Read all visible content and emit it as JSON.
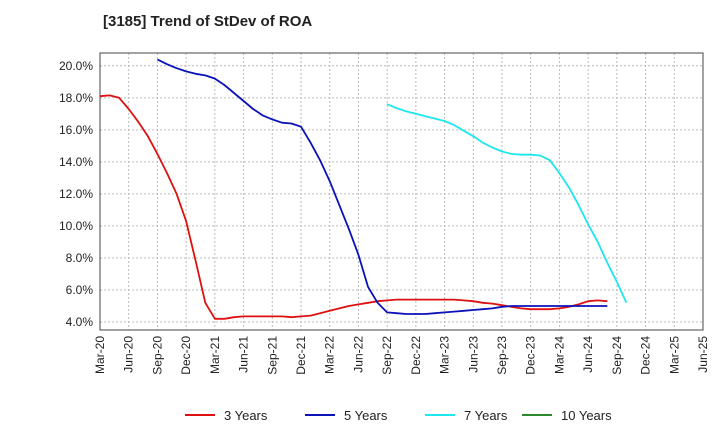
{
  "chart_data": {
    "type": "line",
    "title": "[3185]  Trend of StDev of ROA",
    "xlabel": "",
    "ylabel": "",
    "x_tick_labels": [
      "Mar-20",
      "Jun-20",
      "Sep-20",
      "Dec-20",
      "Mar-21",
      "Jun-21",
      "Sep-21",
      "Dec-21",
      "Mar-22",
      "Jun-22",
      "Sep-22",
      "Dec-22",
      "Mar-23",
      "Jun-23",
      "Sep-23",
      "Dec-23",
      "Mar-24",
      "Jun-24",
      "Sep-24",
      "Dec-24",
      "Mar-25",
      "Jun-25"
    ],
    "y_tick_labels": [
      "4.0%",
      "6.0%",
      "8.0%",
      "10.0%",
      "12.0%",
      "14.0%",
      "16.0%",
      "18.0%",
      "20.0%"
    ],
    "ylim": [
      3.5,
      20.8
    ],
    "y_ticks": [
      4,
      6,
      8,
      10,
      12,
      14,
      16,
      18,
      20
    ],
    "grid": true,
    "legend_position": "bottom",
    "series": [
      {
        "name": "3 Years",
        "color": "#dd1111",
        "x_start_index": 0,
        "values": [
          18.1,
          18.15,
          18.0,
          17.3,
          16.5,
          15.6,
          14.5,
          13.3,
          12.0,
          10.3,
          7.8,
          5.2,
          4.2,
          4.2,
          4.3,
          4.35,
          4.35,
          4.35,
          4.35,
          4.35,
          4.3,
          4.35,
          4.4,
          4.55,
          4.7,
          4.85,
          5.0,
          5.1,
          5.2,
          5.3,
          5.35,
          5.4,
          5.4,
          5.4,
          5.4,
          5.4,
          5.4,
          5.4,
          5.35,
          5.3,
          5.2,
          5.15,
          5.05,
          4.95,
          4.85,
          4.8,
          4.8,
          4.8,
          4.85,
          4.95,
          5.1,
          5.3,
          5.35,
          5.3
        ]
      },
      {
        "name": "5 Years",
        "color": "#0a12b8",
        "x_start_index": 6,
        "values": [
          20.4,
          20.1,
          19.85,
          19.65,
          19.5,
          19.4,
          19.2,
          18.8,
          18.3,
          17.8,
          17.3,
          16.9,
          16.65,
          16.45,
          16.4,
          16.2,
          15.2,
          14.1,
          12.8,
          11.3,
          9.8,
          8.2,
          6.2,
          5.2,
          4.6,
          4.55,
          4.5,
          4.5,
          4.5,
          4.55,
          4.6,
          4.65,
          4.7,
          4.75,
          4.8,
          4.85,
          4.95,
          5.0,
          5.0,
          5.0,
          5.0,
          5.0,
          5.0,
          5.0,
          5.0,
          5.0,
          5.0,
          5.0
        ]
      },
      {
        "name": "7 Years",
        "color": "#1ee6ee",
        "x_start_index": 30,
        "values": [
          17.6,
          17.35,
          17.15,
          17.0,
          16.85,
          16.7,
          16.55,
          16.3,
          15.95,
          15.6,
          15.2,
          14.9,
          14.65,
          14.5,
          14.45,
          14.45,
          14.4,
          14.1,
          13.3,
          12.4,
          11.3,
          10.1,
          9.0,
          7.7,
          6.5,
          5.2
        ]
      },
      {
        "name": "10 Years",
        "color": "#2a8a2a",
        "x_start_index": 0,
        "values": []
      }
    ]
  }
}
